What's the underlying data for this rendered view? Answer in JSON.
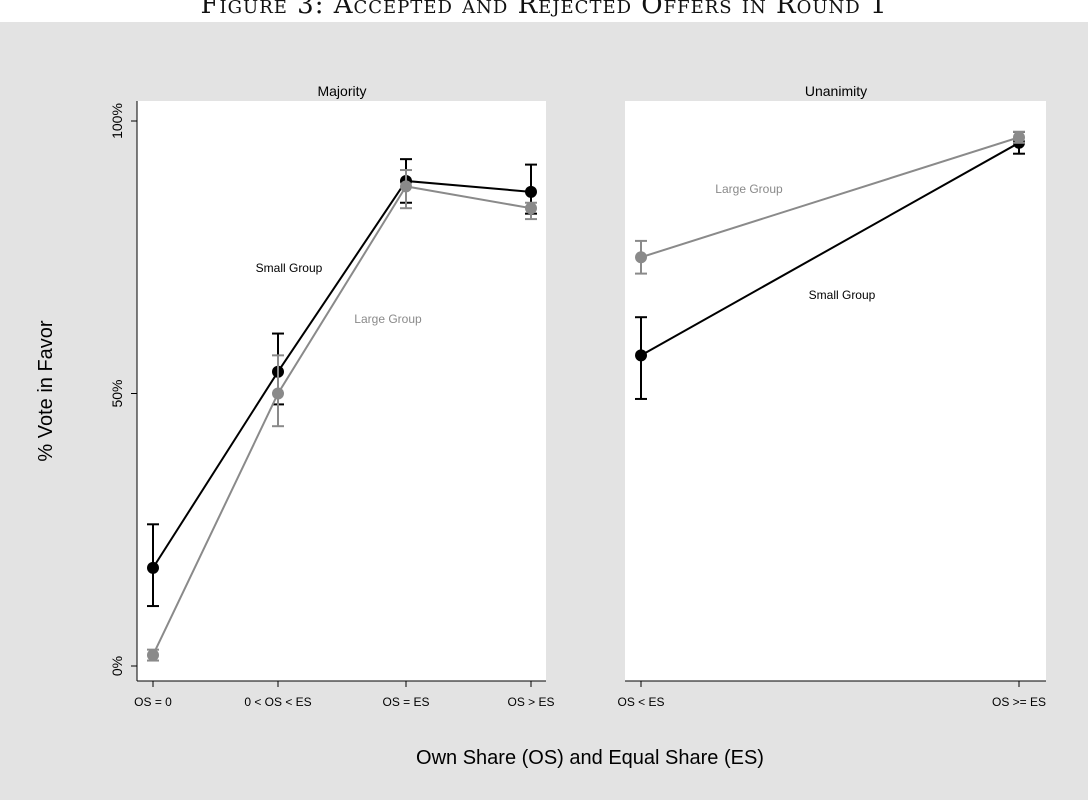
{
  "figure_title": "Figure 3: Accepted and Rejected Offers in Round 1",
  "colors": {
    "background": "#e3e3e3",
    "plot_bg": "#ffffff",
    "small_group": "#000000",
    "large_group": "#8a8a8a"
  },
  "chart_data": [
    {
      "type": "line",
      "title": "Majority",
      "ylabel": "% Vote in Favor",
      "xlabel": "Own Share (OS) and Equal Share (ES)",
      "ylim": [
        0,
        100
      ],
      "yticks": [
        "0%",
        "50%",
        "100%"
      ],
      "categories": [
        "OS = 0",
        "0 < OS < ES",
        "OS = ES",
        "OS > ES"
      ],
      "series": [
        {
          "name": "Small Group",
          "values": [
            18,
            54,
            89,
            87
          ],
          "err_low": [
            11,
            48,
            85,
            83
          ],
          "err_high": [
            26,
            61,
            93,
            92
          ]
        },
        {
          "name": "Large Group",
          "values": [
            2,
            50,
            88,
            84
          ],
          "err_low": [
            1,
            44,
            84,
            82
          ],
          "err_high": [
            3,
            57,
            91,
            85
          ]
        }
      ]
    },
    {
      "type": "line",
      "title": "Unanimity",
      "categories": [
        "OS < ES",
        "OS >= ES"
      ],
      "series": [
        {
          "name": "Large Group",
          "values": [
            75,
            97
          ],
          "err_low": [
            72,
            96
          ],
          "err_high": [
            78,
            98
          ]
        },
        {
          "name": "Small Group",
          "values": [
            57,
            96
          ],
          "err_low": [
            49,
            94
          ],
          "err_high": [
            64,
            98
          ]
        }
      ]
    }
  ]
}
